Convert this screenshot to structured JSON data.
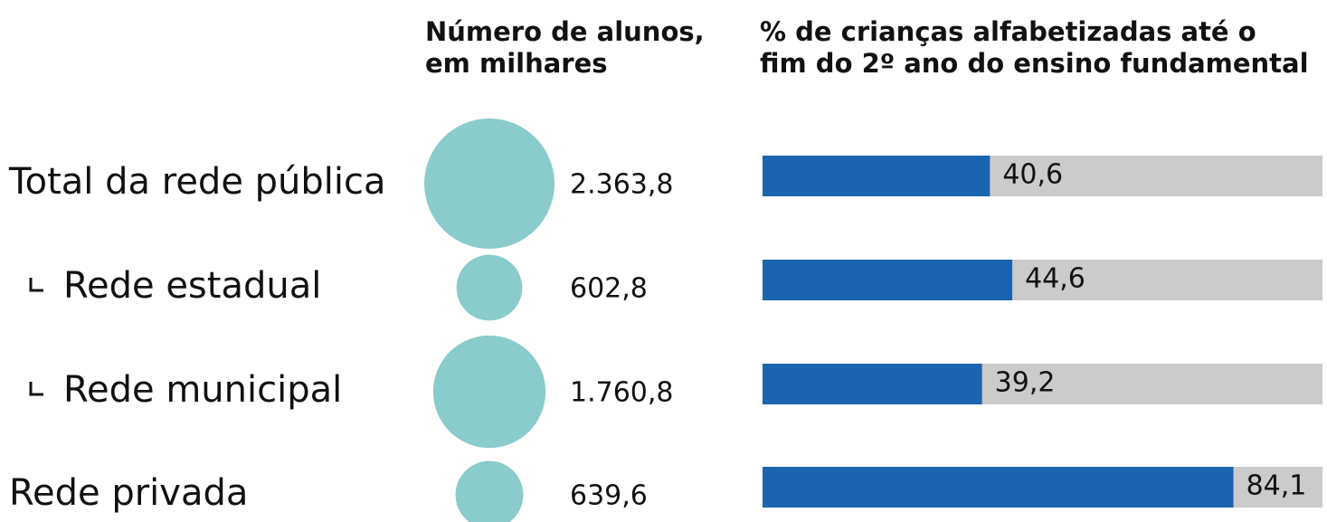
{
  "chart_data": [
    {
      "type": "bubble",
      "title": [
        "Número de alunos,",
        "em milhares"
      ],
      "categories": [
        "Total da rede pública",
        "Rede estadual",
        "Rede municipal",
        "Rede privada"
      ],
      "values": [
        2363.8,
        602.8,
        1760.8,
        639.6
      ],
      "value_labels": [
        "2.363,8",
        "602,8",
        "1.760,8",
        "639,6"
      ],
      "color": "#8acbcb"
    },
    {
      "type": "bar",
      "title": [
        "% de crianças alfabetizadas até o",
        "fim do 2º ano do ensino fundamental"
      ],
      "values": [
        40.6,
        44.6,
        39.2,
        84.1
      ],
      "value_labels": [
        "40,6",
        "44,6",
        "39,2",
        "84,1"
      ],
      "xlim": [
        0,
        100
      ],
      "color": "#1a64b0",
      "background_color": "#cbcbcb"
    }
  ]
}
